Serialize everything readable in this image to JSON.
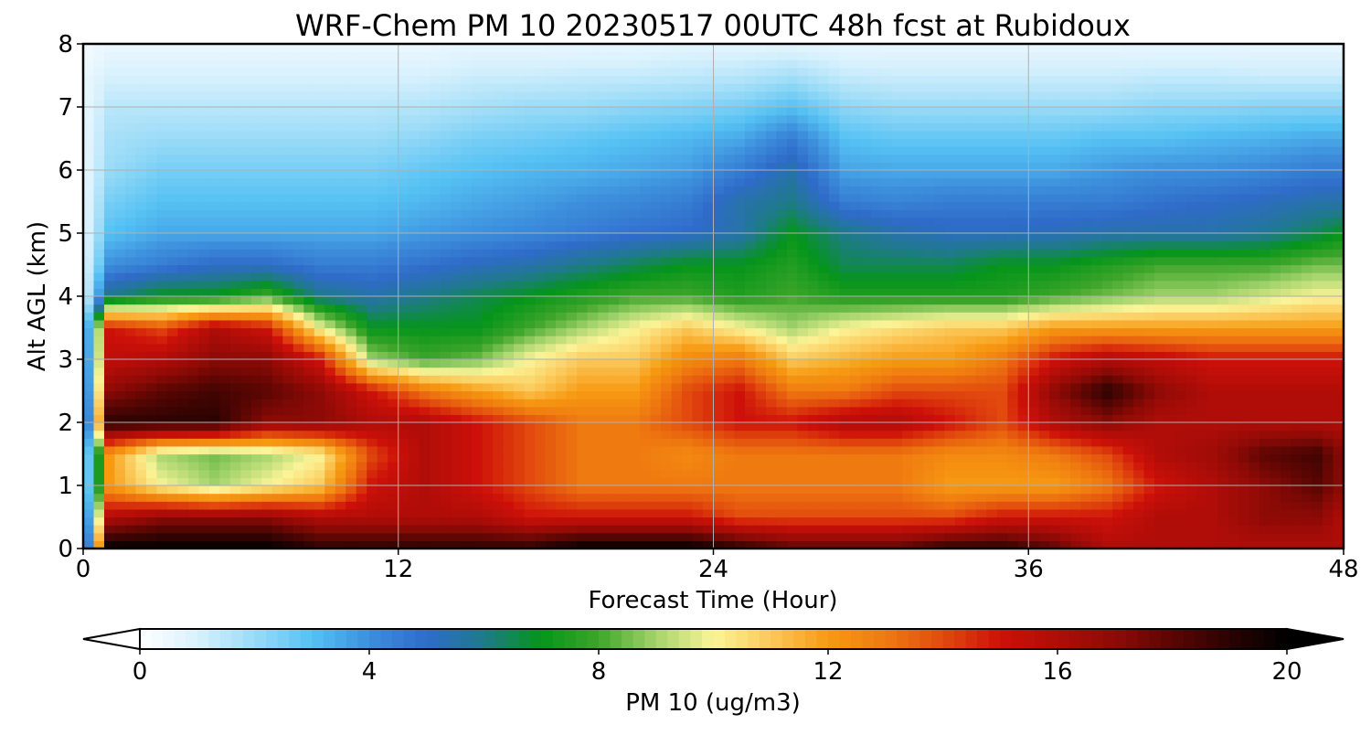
{
  "chart_data": {
    "type": "heatmap",
    "title": "WRF-Chem PM 10  20230517 00UTC 48h fcst at Rubidoux",
    "xlabel": "Forecast Time (Hour)",
    "ylabel": "Alt AGL (km)",
    "xlim": [
      0,
      48
    ],
    "ylim": [
      0,
      8
    ],
    "x_ticks": [
      "0",
      "12",
      "24",
      "36",
      "48"
    ],
    "y_ticks": [
      "0",
      "1",
      "2",
      "3",
      "4",
      "5",
      "6",
      "7",
      "8"
    ],
    "grid": true,
    "x": [
      0,
      1,
      3,
      5,
      7,
      9,
      11,
      13,
      15,
      17,
      19,
      21,
      23,
      25,
      27,
      29,
      31,
      33,
      35,
      37,
      39,
      41,
      43,
      45,
      47,
      48
    ],
    "y": [
      0,
      0.5,
      1,
      1.5,
      2,
      2.5,
      3,
      3.5,
      4,
      4.5,
      5,
      5.5,
      6,
      6.5,
      7,
      7.5,
      8
    ],
    "z": [
      [
        0.5,
        20,
        20,
        20,
        20,
        19,
        19,
        19,
        19,
        19,
        20,
        20,
        20,
        19,
        18,
        18,
        18,
        19,
        19,
        18,
        16,
        16,
        16,
        16,
        16,
        16
      ],
      [
        0.5,
        16,
        17,
        17,
        17,
        16,
        16,
        16,
        16,
        15,
        15,
        15,
        15,
        14,
        14,
        14,
        14,
        14,
        15,
        15,
        15,
        16,
        16,
        17,
        17,
        16
      ],
      [
        0.5,
        12,
        10,
        9,
        10,
        11,
        15,
        16,
        15,
        14,
        13,
        13,
        13,
        13,
        13,
        13,
        13,
        12,
        12,
        12,
        13,
        15,
        16,
        17,
        18,
        17
      ],
      [
        0.5,
        12,
        9,
        8.5,
        9,
        10,
        14,
        16,
        15,
        14,
        13,
        13,
        12.5,
        13,
        13,
        13,
        13,
        12.5,
        12.5,
        13,
        14,
        16,
        16.5,
        18,
        18.5,
        17
      ],
      [
        0.5,
        19,
        19,
        19,
        17,
        17,
        16,
        16,
        15,
        14,
        13,
        13,
        14,
        15,
        15,
        16,
        16,
        15,
        14,
        16,
        17,
        16,
        16,
        16,
        16,
        16
      ],
      [
        0.5,
        17,
        18,
        18.5,
        18,
        17,
        15,
        13,
        12,
        11,
        12,
        12,
        14,
        15,
        13,
        13,
        14,
        14,
        14,
        17,
        19,
        17,
        16,
        16,
        16,
        16
      ],
      [
        0.5,
        15.5,
        16,
        17,
        17,
        15,
        9,
        8,
        8.5,
        10,
        11,
        11,
        12.5,
        13,
        11,
        11.5,
        12,
        12,
        13,
        15,
        16,
        15.5,
        15,
        15,
        15,
        15
      ],
      [
        0.5,
        15,
        14,
        16,
        15,
        10,
        7,
        7,
        7,
        8,
        9,
        10,
        11,
        10,
        9,
        10,
        10.5,
        11,
        11,
        12,
        12,
        12,
        12,
        12,
        12,
        12
      ],
      [
        0.5,
        6,
        7,
        7,
        8,
        6,
        5.5,
        6,
        6.5,
        7,
        7.5,
        8,
        8,
        7.5,
        8,
        7.5,
        7.5,
        7.5,
        7.5,
        8,
        8.5,
        9,
        9,
        9.5,
        10,
        10
      ],
      [
        0.5,
        4,
        4.5,
        5,
        5,
        4.5,
        4.5,
        4.8,
        5.2,
        5.5,
        6,
        6.5,
        7,
        7,
        7.5,
        6.5,
        6.5,
        6.5,
        7,
        7,
        7.5,
        8,
        8,
        8,
        8.5,
        8.5
      ],
      [
        0.5,
        3,
        3.5,
        3.5,
        3.5,
        3.5,
        3.5,
        3.8,
        4,
        4.2,
        4.5,
        4.8,
        5,
        5.5,
        7,
        6,
        5.5,
        5.2,
        5.2,
        5.3,
        5.5,
        5.5,
        5.5,
        5.8,
        6.5,
        7
      ],
      [
        0.5,
        2.5,
        3,
        3,
        3,
        3,
        3,
        3.2,
        3.5,
        3.7,
        4,
        4.2,
        4.5,
        5.5,
        6,
        4.5,
        4.3,
        4.5,
        4.5,
        4.5,
        4.5,
        4.8,
        5,
        5.2,
        5.5,
        5.5
      ],
      [
        0.5,
        2,
        2.5,
        2.5,
        2.5,
        2.5,
        2.5,
        2.8,
        3,
        3.2,
        3.3,
        3.5,
        3.7,
        4.5,
        5.5,
        3.6,
        3.5,
        3.5,
        3.5,
        3.5,
        3.8,
        4,
        4,
        4.2,
        4.5,
        4.5
      ],
      [
        0.5,
        1.8,
        2,
        2,
        2,
        2,
        2,
        2.2,
        2.5,
        2.6,
        2.8,
        3,
        3.2,
        3.5,
        4.5,
        3,
        2.8,
        2.8,
        2.8,
        2.8,
        3,
        3,
        3.2,
        3.3,
        3.5,
        3.5
      ],
      [
        0.5,
        1.5,
        1.5,
        1.5,
        1.5,
        1.5,
        1.5,
        1.6,
        1.8,
        2,
        2,
        2.2,
        2.3,
        2.5,
        3,
        2.2,
        2,
        2,
        2,
        2,
        2,
        2.2,
        2.2,
        2.3,
        2.3,
        2.3
      ],
      [
        0.5,
        1,
        1,
        1,
        1,
        1,
        1,
        1,
        1.2,
        1.2,
        1.3,
        1.3,
        1.4,
        1.5,
        1.8,
        1.3,
        1.2,
        1.2,
        1.2,
        1.2,
        1.2,
        1.3,
        1.3,
        1.2,
        1.2,
        1.2
      ],
      [
        0.3,
        0.5,
        0.5,
        0.5,
        0.5,
        0.5,
        0.5,
        0.5,
        0.6,
        0.6,
        0.6,
        0.6,
        0.7,
        0.7,
        0.7,
        0.6,
        0.6,
        0.6,
        0.6,
        0.6,
        0.6,
        0.6,
        0.6,
        0.6,
        0.6,
        0.6
      ]
    ],
    "colorbar": {
      "label": "PM 10  (ug/m3)",
      "min": 0,
      "max": 20,
      "ticks": [
        "0",
        "4",
        "8",
        "12",
        "16",
        "20"
      ],
      "extend": "both",
      "orientation": "horizontal"
    },
    "colormap": [
      [
        0,
        "#ffffff"
      ],
      [
        1,
        "#d8f1fd"
      ],
      [
        2,
        "#9adbf7"
      ],
      [
        3,
        "#55c1f3"
      ],
      [
        4,
        "#3d8fdc"
      ],
      [
        5,
        "#2f6bc9"
      ],
      [
        6,
        "#1f7a8a"
      ],
      [
        7,
        "#05951a"
      ],
      [
        8,
        "#3ea52a"
      ],
      [
        9,
        "#a5d46d"
      ],
      [
        10,
        "#fbf498"
      ],
      [
        11,
        "#fbc95a"
      ],
      [
        12,
        "#f79a12"
      ],
      [
        13,
        "#ef7a10"
      ],
      [
        14,
        "#e24a0e"
      ],
      [
        15,
        "#cd1009"
      ],
      [
        16,
        "#b00d08"
      ],
      [
        17,
        "#8e0a06"
      ],
      [
        18,
        "#5a0603"
      ],
      [
        19,
        "#2a0302"
      ],
      [
        20,
        "#000000"
      ]
    ]
  }
}
